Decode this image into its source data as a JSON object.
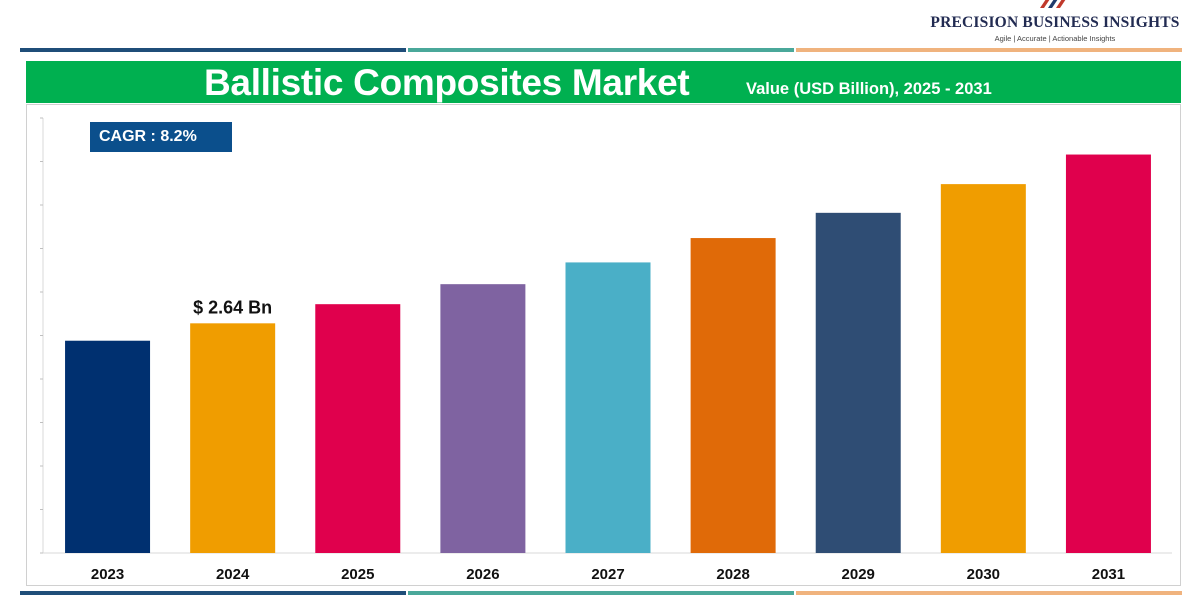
{
  "brand": {
    "name": "PRECISION BUSINESS INSIGHTS",
    "tagline": "Agile | Accurate | Actionable Insights",
    "logo_icon": "flag-stripes-icon"
  },
  "banner": {
    "title": "Ballistic Composites Market",
    "subtitle": "Value (USD Billion), 2025 - 2031",
    "background": "#00b050"
  },
  "cagr": {
    "label": "CAGR : 8.2%"
  },
  "rule_colors": [
    "#1f4e79",
    "#4aa89a",
    "#f0b37e"
  ],
  "chart_data": {
    "type": "bar",
    "title": "Ballistic Composites Market",
    "subtitle": "Value (USD Billion), 2025 - 2031",
    "categories": [
      "2023",
      "2024",
      "2025",
      "2026",
      "2027",
      "2028",
      "2029",
      "2030",
      "2031"
    ],
    "values": [
      2.44,
      2.64,
      2.86,
      3.09,
      3.34,
      3.62,
      3.91,
      4.24,
      4.58
    ],
    "colors": [
      "#003070",
      "#f09d00",
      "#e0004d",
      "#7f63a1",
      "#4aafc7",
      "#e06a08",
      "#2f4d74",
      "#f09d00",
      "#e0004d"
    ],
    "data_labels": [
      {
        "category": "2024",
        "text": "$ 2.64 Bn"
      }
    ],
    "ylim": [
      0,
      5
    ],
    "xlabel": "",
    "ylabel": "",
    "y_tick_labels_shown": false,
    "grid": false,
    "legend": "none"
  }
}
